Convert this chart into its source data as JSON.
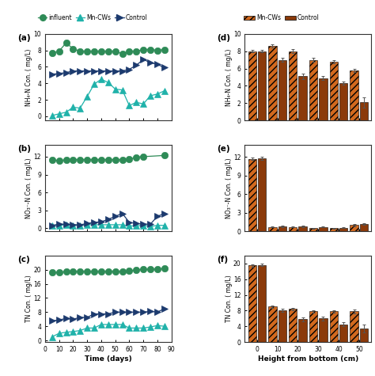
{
  "left_panels": {
    "a": {
      "label": "(a)",
      "ylabel": "NH₄-N Con. ( mg/L)",
      "ylim": [
        -0.5,
        10
      ],
      "yticks": [
        0,
        2,
        4,
        6,
        8,
        10
      ],
      "influent_x": [
        5,
        10,
        15,
        20,
        25,
        30,
        35,
        40,
        45,
        50,
        55,
        60,
        65,
        70,
        75,
        80,
        85
      ],
      "influent_y": [
        7.7,
        7.9,
        8.9,
        8.2,
        7.9,
        7.9,
        7.9,
        7.9,
        7.9,
        7.9,
        7.6,
        7.9,
        7.9,
        8.1,
        8.1,
        8.0,
        8.1
      ],
      "mncws_x": [
        5,
        10,
        15,
        20,
        25,
        30,
        35,
        40,
        45,
        50,
        55,
        60,
        65,
        70,
        75,
        80,
        85
      ],
      "mncws_y": [
        0.1,
        0.3,
        0.5,
        1.1,
        1.0,
        2.4,
        3.9,
        4.5,
        4.1,
        3.3,
        3.2,
        1.3,
        1.7,
        1.5,
        2.5,
        2.7,
        3.1
      ],
      "control_x": [
        5,
        10,
        15,
        20,
        25,
        30,
        35,
        40,
        45,
        50,
        55,
        60,
        65,
        70,
        75,
        80,
        85
      ],
      "control_y": [
        5.1,
        5.2,
        5.3,
        5.5,
        5.5,
        5.5,
        5.5,
        5.5,
        5.5,
        5.5,
        5.5,
        5.7,
        6.2,
        6.9,
        6.5,
        6.3,
        5.9
      ]
    },
    "b": {
      "label": "(b)",
      "ylabel": "NO₃⁻-N Con. ( mg/L)",
      "ylim": [
        -0.5,
        14
      ],
      "yticks": [
        0,
        3,
        6,
        9,
        12
      ],
      "influent_x": [
        5,
        10,
        15,
        20,
        25,
        30,
        35,
        40,
        45,
        50,
        55,
        60,
        65,
        70,
        85
      ],
      "influent_y": [
        11.5,
        11.3,
        11.5,
        11.5,
        11.5,
        11.5,
        11.5,
        11.5,
        11.5,
        11.5,
        11.5,
        11.6,
        11.9,
        12.0,
        12.2
      ],
      "mncws_x": [
        5,
        10,
        15,
        20,
        25,
        30,
        35,
        40,
        45,
        50,
        55,
        60,
        65,
        70,
        75,
        80,
        85
      ],
      "mncws_y": [
        0.4,
        0.5,
        0.6,
        0.5,
        0.5,
        0.6,
        0.6,
        0.6,
        0.6,
        0.6,
        0.6,
        0.4,
        0.4,
        0.5,
        0.3,
        0.5,
        0.5
      ],
      "control_x": [
        5,
        10,
        15,
        20,
        25,
        30,
        35,
        40,
        45,
        50,
        55,
        60,
        65,
        70,
        75,
        80,
        85
      ],
      "control_y": [
        0.5,
        0.7,
        0.7,
        0.6,
        0.6,
        0.8,
        1.0,
        1.1,
        1.5,
        2.0,
        2.5,
        1.0,
        0.8,
        0.7,
        0.7,
        2.0,
        2.5
      ]
    },
    "c": {
      "label": "(c)",
      "ylabel": "TN Con. ( mg/L)",
      "ylim": [
        -0.5,
        24
      ],
      "yticks": [
        0,
        4,
        8,
        12,
        16,
        20
      ],
      "influent_x": [
        5,
        10,
        15,
        20,
        25,
        30,
        35,
        40,
        45,
        50,
        55,
        60,
        65,
        70,
        75,
        80,
        85
      ],
      "influent_y": [
        19.2,
        19.2,
        19.5,
        19.5,
        19.5,
        19.5,
        19.5,
        19.5,
        19.5,
        19.5,
        19.5,
        19.6,
        19.9,
        20.1,
        20.1,
        20.2,
        20.3
      ],
      "mncws_x": [
        5,
        10,
        15,
        20,
        25,
        30,
        35,
        40,
        45,
        50,
        55,
        60,
        65,
        70,
        75,
        80,
        85
      ],
      "mncws_y": [
        1.0,
        2.0,
        2.3,
        2.5,
        2.8,
        3.5,
        3.5,
        4.5,
        4.5,
        4.5,
        4.5,
        3.5,
        3.5,
        3.5,
        3.8,
        4.2,
        4.0
      ],
      "control_x": [
        5,
        10,
        15,
        20,
        25,
        30,
        35,
        40,
        45,
        50,
        55,
        60,
        65,
        70,
        75,
        80,
        85
      ],
      "control_y": [
        5.5,
        5.8,
        6.2,
        6.0,
        6.5,
        6.5,
        7.5,
        7.5,
        7.5,
        8.0,
        8.0,
        8.0,
        8.0,
        8.0,
        8.2,
        8.0,
        9.0
      ]
    }
  },
  "right_panels": {
    "d": {
      "label": "(d)",
      "ylabel": "NH₄-N Con. ( mg/L)",
      "ylim": [
        0,
        10
      ],
      "yticks": [
        0,
        2,
        4,
        6,
        8,
        10
      ],
      "x": [
        0,
        10,
        20,
        30,
        40,
        50
      ],
      "mncws_y": [
        8.0,
        8.6,
        8.0,
        7.0,
        6.8,
        5.8
      ],
      "control_y": [
        8.0,
        7.0,
        5.1,
        4.9,
        4.3,
        2.1
      ],
      "mncws_err": [
        0.15,
        0.15,
        0.2,
        0.2,
        0.2,
        0.2
      ],
      "control_err": [
        0.15,
        0.25,
        0.3,
        0.25,
        0.2,
        0.6
      ]
    },
    "e": {
      "label": "(e)",
      "ylabel": "NO₃⁻-N Con. ( mg/L)",
      "ylim": [
        0,
        14
      ],
      "yticks": [
        0,
        3,
        6,
        9,
        12
      ],
      "x": [
        0,
        10,
        20,
        30,
        40,
        50
      ],
      "mncws_y": [
        11.7,
        0.7,
        0.7,
        0.5,
        0.5,
        1.0
      ],
      "control_y": [
        11.8,
        0.8,
        0.8,
        0.7,
        0.6,
        1.2
      ],
      "mncws_err": [
        0.2,
        0.08,
        0.08,
        0.08,
        0.08,
        0.15
      ],
      "control_err": [
        0.2,
        0.08,
        0.08,
        0.08,
        0.08,
        0.15
      ]
    },
    "f": {
      "label": "(f)",
      "ylabel": "TN Con. ( mg/L)",
      "ylim": [
        0,
        22
      ],
      "yticks": [
        0,
        4,
        8,
        12,
        16,
        20
      ],
      "x": [
        0,
        10,
        20,
        30,
        40,
        50
      ],
      "mncws_y": [
        19.5,
        9.0,
        8.4,
        7.8,
        7.8,
        7.8
      ],
      "control_y": [
        19.6,
        8.0,
        5.8,
        6.0,
        4.5,
        3.5
      ],
      "mncws_err": [
        0.3,
        0.3,
        0.3,
        0.3,
        0.3,
        0.5
      ],
      "control_err": [
        0.3,
        0.4,
        0.5,
        0.5,
        0.5,
        1.0
      ]
    }
  },
  "colors": {
    "influent": "#2e8b57",
    "mncws_line": "#20b2aa",
    "control_line": "#1c3a6e",
    "mncws_bar": "#d2691e",
    "control_bar": "#8b3a0a",
    "bg": "#ffffff"
  },
  "xlabel_left": "Time (days)",
  "xlabel_right": "Height from bottom (cm)"
}
